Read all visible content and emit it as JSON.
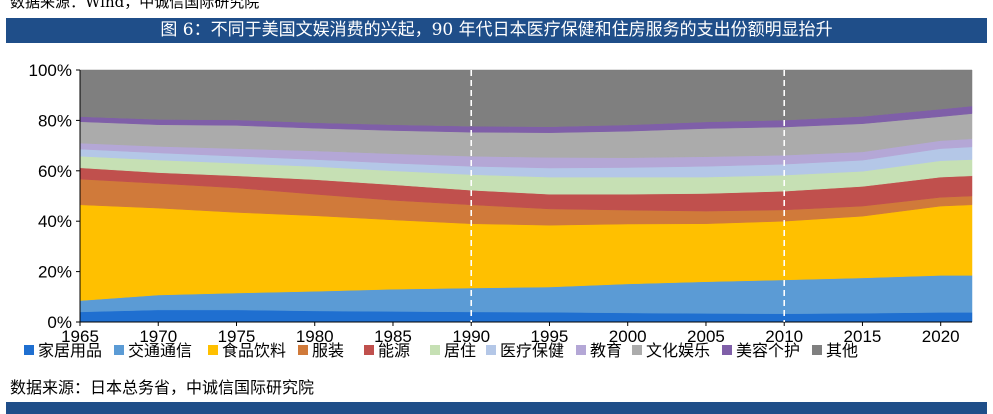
{
  "header": {
    "top_source": "数据来源：Wind，中诚信国际研究院",
    "figure_title": "图 6：不同于美国文娱消费的兴起，90 年代日本医疗保健和住房服务的支出份额明显抬升"
  },
  "footer": {
    "source": "数据来源：日本总务省，中诚信国际研究院"
  },
  "chart_data": {
    "type": "area",
    "stacked": true,
    "title": "",
    "xlabel": "",
    "ylabel": "",
    "x": [
      1965,
      1970,
      1975,
      1980,
      1985,
      1990,
      1995,
      2000,
      2005,
      2010,
      2015,
      2020,
      2022
    ],
    "x_ticks": [
      "1965",
      "1970",
      "1975",
      "1980",
      "1985",
      "1990",
      "1995",
      "2000",
      "2005",
      "2010",
      "2015",
      "2020"
    ],
    "y_ticks": [
      "0%",
      "20%",
      "40%",
      "60%",
      "80%",
      "100%"
    ],
    "ylim": [
      0,
      100
    ],
    "reference_lines_x": [
      1990,
      2010
    ],
    "legend_position": "bottom",
    "series": [
      {
        "name": "家居用品",
        "color": "#1f6fd0",
        "values": [
          4.0,
          4.8,
          4.8,
          4.4,
          4.2,
          4.0,
          3.9,
          3.6,
          3.4,
          3.3,
          3.5,
          3.8,
          3.8
        ]
      },
      {
        "name": "交通通信",
        "color": "#5b9bd5",
        "values": [
          4.5,
          5.9,
          6.7,
          7.8,
          8.8,
          9.5,
          10.0,
          11.5,
          12.6,
          13.4,
          14.0,
          14.7,
          14.7
        ]
      },
      {
        "name": "食品饮料",
        "color": "#ffc000",
        "values": [
          38.0,
          34.5,
          32.0,
          30.0,
          27.5,
          25.5,
          24.5,
          23.8,
          23.0,
          23.3,
          24.5,
          27.5,
          28.0
        ]
      },
      {
        "name": "服装",
        "color": "#d07a3a",
        "values": [
          10.2,
          9.8,
          9.7,
          8.5,
          7.8,
          7.5,
          6.5,
          5.5,
          5.0,
          4.5,
          4.0,
          3.5,
          3.5
        ]
      },
      {
        "name": "能源",
        "color": "#c0504d",
        "values": [
          4.5,
          4.3,
          4.8,
          5.8,
          6.2,
          5.8,
          5.8,
          6.3,
          7.0,
          7.4,
          7.8,
          8.0,
          8.0
        ]
      },
      {
        "name": "居住",
        "color": "#c6e0b4",
        "values": [
          4.6,
          5.0,
          5.0,
          5.2,
          5.5,
          6.2,
          6.8,
          6.8,
          6.5,
          6.4,
          6.0,
          6.5,
          6.5
        ]
      },
      {
        "name": "医疗保健",
        "color": "#b4c7e7",
        "values": [
          2.8,
          2.8,
          2.8,
          2.8,
          3.0,
          3.3,
          3.6,
          3.8,
          4.3,
          4.3,
          4.4,
          4.8,
          5.0
        ]
      },
      {
        "name": "教育",
        "color": "#b4a7d6",
        "values": [
          2.4,
          2.6,
          3.0,
          3.4,
          3.8,
          4.0,
          4.2,
          3.9,
          3.8,
          3.6,
          3.3,
          3.2,
          3.2
        ]
      },
      {
        "name": "文化娱乐",
        "color": "#ababab",
        "values": [
          8.5,
          8.6,
          9.2,
          9.0,
          9.2,
          9.5,
          9.8,
          10.5,
          11.2,
          11.2,
          11.2,
          9.5,
          10.0
        ]
      },
      {
        "name": "美容个护",
        "color": "#7f5fa8",
        "values": [
          2.0,
          2.1,
          2.2,
          2.2,
          2.3,
          2.4,
          2.4,
          2.5,
          2.6,
          2.7,
          2.9,
          3.0,
          3.0
        ]
      },
      {
        "name": "其他",
        "color": "#7f7f7f",
        "values": [
          18.5,
          19.6,
          19.8,
          20.9,
          21.7,
          22.3,
          22.5,
          21.8,
          20.6,
          19.9,
          18.4,
          15.5,
          14.3
        ]
      }
    ]
  }
}
